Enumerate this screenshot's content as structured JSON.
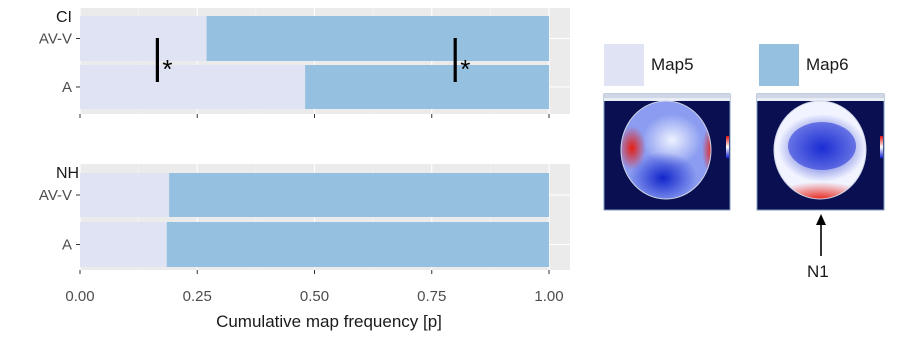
{
  "chart_data": {
    "type": "bar",
    "orientation": "horizontal",
    "stacked": true,
    "xlabel": "Cumulative map frequency [p]",
    "xlim": [
      0,
      1
    ],
    "x_ticks": [
      "0.00",
      "0.25",
      "0.50",
      "0.75",
      "1.00"
    ],
    "x_tick_values": [
      0,
      0.25,
      0.5,
      0.75,
      1.0
    ],
    "grid": true,
    "series": [
      {
        "name": "Map5",
        "color": "#dfe3f3"
      },
      {
        "name": "Map6",
        "color": "#95c0df"
      }
    ],
    "panels": [
      {
        "title": "CI",
        "categories": [
          "AV-V",
          "A"
        ],
        "map5": [
          0.27,
          0.48
        ],
        "map6": [
          0.73,
          0.52
        ],
        "significance": [
          {
            "x": 0.165,
            "label": "*"
          },
          {
            "x": 0.8,
            "label": "*"
          }
        ]
      },
      {
        "title": "NH",
        "categories": [
          "AV-V",
          "A"
        ],
        "map5": [
          0.19,
          0.185
        ],
        "map6": [
          0.81,
          0.815
        ],
        "significance": []
      }
    ]
  },
  "legend": [
    {
      "label": "Map5",
      "color": "#dfe3f3"
    },
    {
      "label": "Map6",
      "color": "#95c0df"
    }
  ],
  "topomaps": [
    {
      "name": "map5-topography",
      "pole": "left-right"
    },
    {
      "name": "map6-topography",
      "pole": "frontal-posterior"
    }
  ],
  "annotation": {
    "label": "N1"
  }
}
